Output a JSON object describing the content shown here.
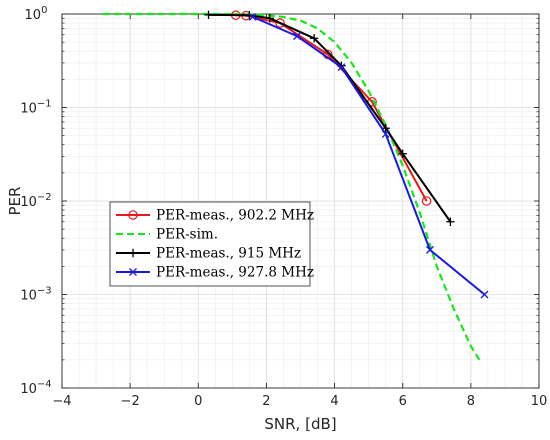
{
  "chart_data": {
    "type": "line",
    "xlabel": "SNR, [dB]",
    "ylabel": "PER",
    "xlim": [
      -4,
      10
    ],
    "ylim": [
      0.0001,
      1
    ],
    "y_scale": "log",
    "grid": true,
    "minor_grid": true,
    "legend_position": "left-middle",
    "x_ticks": [
      -4,
      -2,
      0,
      2,
      4,
      6,
      8,
      10
    ],
    "x_tick_labels": [
      "−4",
      "−2",
      "0",
      "2",
      "4",
      "6",
      "8",
      "10"
    ],
    "y_ticks": [
      {
        "value": 0.0001,
        "base": "10",
        "exp": "−4"
      },
      {
        "value": 0.001,
        "base": "10",
        "exp": "−3"
      },
      {
        "value": 0.01,
        "base": "10",
        "exp": "−2"
      },
      {
        "value": 0.1,
        "base": "10",
        "exp": "−1"
      },
      {
        "value": 1,
        "base": "10",
        "exp": "0"
      }
    ],
    "series": [
      {
        "name": "PER-meas., 902.2 MHz",
        "color": "#e6191a",
        "marker": "circle",
        "line": "solid",
        "x": [
          1.1,
          1.4,
          2.4,
          3.8,
          5.1,
          6.7
        ],
        "y": [
          0.97,
          0.96,
          0.8,
          0.37,
          0.115,
          0.01
        ]
      },
      {
        "name": "PER-sim.",
        "color": "#19e619",
        "marker": "none",
        "line": "dashed",
        "x": [
          -2.8,
          -2,
          -1,
          0,
          0.5,
          1,
          1.5,
          2,
          2.5,
          3,
          3.5,
          4,
          4.5,
          5,
          5.5,
          6,
          6.5,
          7,
          7.5,
          8,
          8.25
        ],
        "y": [
          1,
          1,
          1,
          1,
          1,
          0.995,
          0.99,
          0.97,
          0.93,
          0.85,
          0.7,
          0.5,
          0.3,
          0.15,
          0.065,
          0.024,
          0.0075,
          0.002,
          0.0007,
          0.00028,
          0.0002
        ]
      },
      {
        "name": "PER-meas., 915 MHz",
        "color": "#000000",
        "marker": "plus",
        "line": "solid",
        "x": [
          0.3,
          1.5,
          2.1,
          3.4,
          4.2,
          5.5,
          6.0,
          7.4
        ],
        "y": [
          0.98,
          0.97,
          0.9,
          0.55,
          0.28,
          0.06,
          0.032,
          0.006
        ]
      },
      {
        "name": "PER-meas., 927.8 MHz",
        "color": "#1919e6",
        "marker": "x",
        "line": "solid",
        "x": [
          1.6,
          2.9,
          4.2,
          5.5,
          6.8,
          8.4
        ],
        "y": [
          0.93,
          0.58,
          0.27,
          0.052,
          0.003,
          0.001
        ]
      }
    ]
  }
}
